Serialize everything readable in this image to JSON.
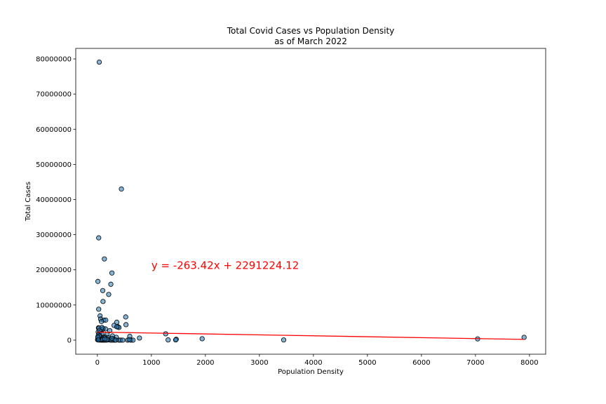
{
  "chart_data": {
    "type": "scatter",
    "title": "Total Covid Cases vs Population Density",
    "subtitle": "as of March 2022",
    "xlabel": "Population Density",
    "ylabel": "Total Cases",
    "xlim": [
      -400,
      8300
    ],
    "ylim": [
      -4000000,
      83000000
    ],
    "xticks": [
      0,
      1000,
      2000,
      3000,
      4000,
      5000,
      6000,
      7000,
      8000
    ],
    "yticks": [
      0,
      10000000,
      20000000,
      30000000,
      40000000,
      50000000,
      60000000,
      70000000,
      80000000
    ],
    "grid": false,
    "point_color": "#1f77b4",
    "line_color": "#ff0000",
    "annotation": {
      "text": "y = -263.42x + 2291224.12",
      "x": 1000,
      "y": 20000000,
      "color": "#ff0000"
    },
    "regression": {
      "slope": -263.42,
      "intercept": 2291224.12,
      "x_range": [
        0,
        7900
      ]
    },
    "points": [
      [
        35,
        79100000
      ],
      [
        445,
        43000000
      ],
      [
        25,
        29100000
      ],
      [
        130,
        23100000
      ],
      [
        270,
        19100000
      ],
      [
        10,
        16700000
      ],
      [
        250,
        15900000
      ],
      [
        100,
        14100000
      ],
      [
        210,
        13000000
      ],
      [
        105,
        11000000
      ],
      [
        25,
        8800000
      ],
      [
        50,
        6900000
      ],
      [
        525,
        6600000
      ],
      [
        60,
        6000000
      ],
      [
        120,
        5700000
      ],
      [
        155,
        5700000
      ],
      [
        75,
        5300000
      ],
      [
        360,
        5100000
      ],
      [
        530,
        4400000
      ],
      [
        310,
        4200000
      ],
      [
        380,
        3800000
      ],
      [
        400,
        3600000
      ],
      [
        360,
        3800000
      ],
      [
        20,
        3500000
      ],
      [
        30,
        3400000
      ],
      [
        110,
        3300000
      ],
      [
        150,
        3200000
      ],
      [
        90,
        3000000
      ],
      [
        230,
        2700000
      ],
      [
        60,
        2500000
      ],
      [
        15,
        2300000
      ],
      [
        40,
        2000000
      ],
      [
        80,
        1900000
      ],
      [
        1265,
        1800000
      ],
      [
        180,
        1600000
      ],
      [
        20,
        1500000
      ],
      [
        280,
        1200000
      ],
      [
        600,
        1100000
      ],
      [
        60,
        1000000
      ],
      [
        140,
        900000
      ],
      [
        350,
        800000
      ],
      [
        200,
        700000
      ],
      [
        120,
        700000
      ],
      [
        780,
        600000
      ],
      [
        95,
        500000
      ],
      [
        7900,
        800000
      ],
      [
        1940,
        400000
      ],
      [
        7040,
        350000
      ],
      [
        1460,
        250000
      ],
      [
        300,
        300000
      ],
      [
        45,
        300000
      ],
      [
        10,
        200000
      ],
      [
        220,
        150000
      ],
      [
        3450,
        50000
      ],
      [
        1310,
        60000
      ],
      [
        5,
        100000
      ],
      [
        15,
        80000
      ],
      [
        30,
        60000
      ],
      [
        50,
        40000
      ],
      [
        70,
        30000
      ],
      [
        90,
        20000
      ],
      [
        110,
        15000
      ],
      [
        130,
        10000
      ],
      [
        160,
        5000
      ],
      [
        190,
        50000
      ],
      [
        240,
        30000
      ],
      [
        260,
        10000
      ],
      [
        290,
        20000
      ],
      [
        320,
        5000
      ],
      [
        340,
        8000
      ],
      [
        400,
        3000
      ],
      [
        430,
        5000
      ],
      [
        470,
        2000
      ],
      [
        560,
        3000
      ],
      [
        620,
        10000
      ],
      [
        660,
        4000
      ],
      [
        180,
        200000
      ],
      [
        100,
        300000
      ],
      [
        60,
        150000
      ],
      [
        25,
        400000
      ],
      [
        35,
        1200000
      ],
      [
        12,
        600000
      ],
      [
        8,
        900000
      ],
      [
        18,
        50000
      ],
      [
        140,
        350000
      ],
      [
        1450,
        60000
      ],
      [
        590,
        100000
      ],
      [
        270,
        500000
      ],
      [
        40,
        2800000
      ],
      [
        85,
        3600000
      ]
    ]
  }
}
